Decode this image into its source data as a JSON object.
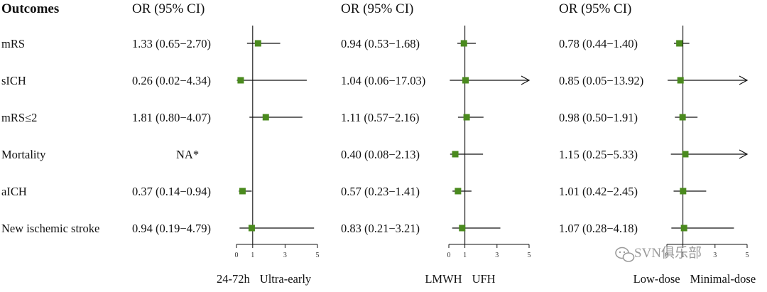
{
  "header": {
    "outcomes_label": "Outcomes"
  },
  "rows": [
    "mRS",
    "sICH",
    "mRS≤2",
    "Mortality",
    "aICH",
    "New ischemic stroke"
  ],
  "watermark": "SVN俱乐部",
  "colors": {
    "marker": "#4a8a1e",
    "line": "#111111"
  },
  "chart_data": [
    {
      "type": "forest",
      "column_title": "OR (95% CI)",
      "xlim": [
        0,
        5
      ],
      "xticks": [
        0,
        1,
        3,
        5
      ],
      "reference_line": 1,
      "left_label": "24-72h",
      "right_label": "Ultra-early",
      "or_text": [
        "1.33 (0.65−2.70)",
        "0.26 (0.02−4.34)",
        "1.81 (0.80−4.07)",
        "NA*",
        "0.37 (0.14−0.94)",
        "0.94 (0.19−4.79)"
      ],
      "or": [
        1.33,
        0.26,
        1.81,
        null,
        0.37,
        0.94
      ],
      "lower": [
        0.65,
        0.02,
        0.8,
        null,
        0.14,
        0.19
      ],
      "upper": [
        2.7,
        4.34,
        4.07,
        null,
        0.94,
        4.79
      ]
    },
    {
      "type": "forest",
      "column_title": "OR (95% CI)",
      "xlim": [
        0,
        5
      ],
      "xticks": [
        0,
        1,
        3,
        5
      ],
      "reference_line": 1,
      "left_label": "LMWH",
      "right_label": "UFH",
      "or_text": [
        "0.94 (0.53−1.68)",
        "1.04 (0.06−17.03)",
        "1.11 (0.57−2.16)",
        "0.40 (0.08−2.13)",
        "0.57 (0.23−1.41)",
        "0.83 (0.21−3.21)"
      ],
      "or": [
        0.94,
        1.04,
        1.11,
        0.4,
        0.57,
        0.83
      ],
      "lower": [
        0.53,
        0.06,
        0.57,
        0.08,
        0.23,
        0.21
      ],
      "upper": [
        1.68,
        17.03,
        2.16,
        2.13,
        1.41,
        3.21
      ]
    },
    {
      "type": "forest",
      "column_title": "OR (95% CI)",
      "xlim": [
        0,
        5
      ],
      "xticks": [
        0,
        1,
        3,
        5
      ],
      "reference_line": 1,
      "left_label": "Low-dose",
      "right_label": "Minimal-dose",
      "or_text": [
        "0.78 (0.44−1.40)",
        "0.85 (0.05−13.92)",
        "0.98 (0.50−1.91)",
        "1.15 (0.25−5.33)",
        "1.01 (0.42−2.45)",
        "1.07 (0.28−4.18)"
      ],
      "or": [
        0.78,
        0.85,
        0.98,
        1.15,
        1.01,
        1.07
      ],
      "lower": [
        0.44,
        0.05,
        0.5,
        0.25,
        0.42,
        0.28
      ],
      "upper": [
        1.4,
        13.92,
        1.91,
        5.33,
        2.45,
        4.18
      ]
    }
  ]
}
